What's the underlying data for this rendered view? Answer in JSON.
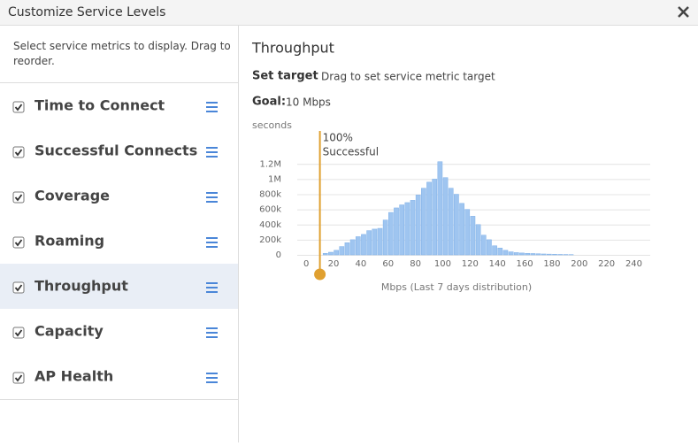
{
  "dialog": {
    "title": "Customize Service Levels"
  },
  "sidebar": {
    "instructions": "Select service metrics to display. Drag to reorder.",
    "metrics": [
      "Time to Connect",
      "Successful Connects",
      "Coverage",
      "Roaming",
      "Throughput",
      "Capacity",
      "AP Health"
    ],
    "selected": 4
  },
  "detail": {
    "title": "Throughput",
    "set_target_label": "Set target",
    "set_target_hint": "Drag to set service metric target",
    "goal_label": "Goal:",
    "goal_value": "10 Mbps"
  },
  "chart_data": {
    "type": "histogram",
    "y_label": "seconds",
    "x_label": "Mbps (Last 7 days distribution)",
    "color": "#9fc5f0",
    "bins": [
      12,
      16,
      20,
      24,
      28,
      32,
      36,
      40,
      44,
      48,
      52,
      56,
      60,
      64,
      68,
      72,
      76,
      80,
      84,
      88,
      92,
      96,
      100,
      104,
      108,
      112,
      116,
      120,
      124,
      128,
      132,
      136,
      140,
      144,
      148,
      152,
      156,
      160,
      164,
      168,
      172,
      176,
      180,
      184,
      188,
      192,
      196
    ],
    "values": [
      20000,
      35000,
      60000,
      110000,
      160000,
      200000,
      240000,
      270000,
      320000,
      340000,
      350000,
      460000,
      560000,
      620000,
      660000,
      690000,
      720000,
      790000,
      880000,
      960000,
      1000000,
      1230000,
      1020000,
      880000,
      800000,
      680000,
      600000,
      510000,
      400000,
      260000,
      200000,
      120000,
      90000,
      60000,
      40000,
      30000,
      25000,
      20000,
      18000,
      15000,
      12000,
      10000,
      8000,
      6000,
      5000,
      4000
    ],
    "xlim": [
      -4,
      252
    ],
    "xticks": [
      0,
      20,
      40,
      60,
      80,
      100,
      120,
      140,
      160,
      180,
      200,
      220,
      240
    ],
    "ylim": [
      0,
      1250000
    ],
    "yticks": [
      0,
      {
        "value": 200000,
        "label": "200k"
      },
      {
        "value": 400000,
        "label": "400k"
      },
      {
        "value": 600000,
        "label": "600k"
      },
      {
        "value": 800000,
        "label": "800k"
      },
      {
        "value": 1000000,
        "label": "1M"
      },
      {
        "value": 1200000,
        "label": "1.2M"
      }
    ],
    "grid": true,
    "target": {
      "value": 10,
      "label_lines": [
        "100%",
        "Successful"
      ],
      "color": "#e0a030"
    }
  }
}
